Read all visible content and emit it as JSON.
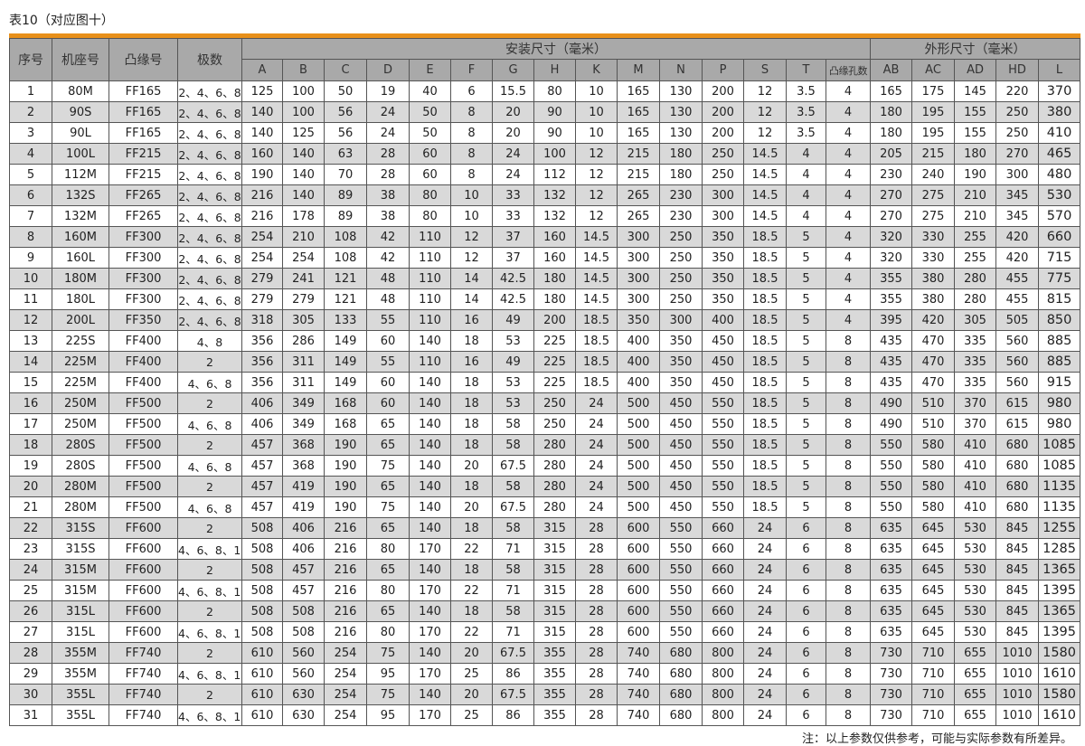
{
  "caption": "表10（对应图十）",
  "note": "注：以上参数仅供参考，可能与实际参数有所差异。",
  "colors": {
    "accent_bar": "#e8901a",
    "header_bg": "#a9a9a9",
    "alt_row_bg": "#d9d9d9"
  },
  "headers": {
    "fixed": [
      "序号",
      "机座号",
      "凸缘号",
      "极数"
    ],
    "group_install": "安装尺寸（毫米）",
    "group_outline": "外形尺寸（毫米）",
    "install_cols": [
      "A",
      "B",
      "C",
      "D",
      "E",
      "F",
      "G",
      "H",
      "K",
      "M",
      "N",
      "P",
      "S",
      "T",
      "凸缘孔数"
    ],
    "outline_cols": [
      "AB",
      "AC",
      "AD",
      "HD",
      "L"
    ]
  },
  "rows": [
    [
      "1",
      "80M",
      "FF165",
      "2、4、6、8",
      "125",
      "100",
      "50",
      "19",
      "40",
      "6",
      "15.5",
      "80",
      "10",
      "165",
      "130",
      "200",
      "12",
      "3.5",
      "4",
      "165",
      "175",
      "145",
      "220",
      "370"
    ],
    [
      "2",
      "90S",
      "FF165",
      "2、4、6、8",
      "140",
      "100",
      "56",
      "24",
      "50",
      "8",
      "20",
      "90",
      "10",
      "165",
      "130",
      "200",
      "12",
      "3.5",
      "4",
      "180",
      "195",
      "155",
      "250",
      "380"
    ],
    [
      "3",
      "90L",
      "FF165",
      "2、4、6、8",
      "140",
      "125",
      "56",
      "24",
      "50",
      "8",
      "20",
      "90",
      "10",
      "165",
      "130",
      "200",
      "12",
      "3.5",
      "4",
      "180",
      "195",
      "155",
      "250",
      "410"
    ],
    [
      "4",
      "100L",
      "FF215",
      "2、4、6、8",
      "160",
      "140",
      "63",
      "28",
      "60",
      "8",
      "24",
      "100",
      "12",
      "215",
      "180",
      "250",
      "14.5",
      "4",
      "4",
      "205",
      "215",
      "180",
      "270",
      "465"
    ],
    [
      "5",
      "112M",
      "FF215",
      "2、4、6、8",
      "190",
      "140",
      "70",
      "28",
      "60",
      "8",
      "24",
      "112",
      "12",
      "215",
      "180",
      "250",
      "14.5",
      "4",
      "4",
      "230",
      "240",
      "190",
      "300",
      "480"
    ],
    [
      "6",
      "132S",
      "FF265",
      "2、4、6、8",
      "216",
      "140",
      "89",
      "38",
      "80",
      "10",
      "33",
      "132",
      "12",
      "265",
      "230",
      "300",
      "14.5",
      "4",
      "4",
      "270",
      "275",
      "210",
      "345",
      "530"
    ],
    [
      "7",
      "132M",
      "FF265",
      "2、4、6、8",
      "216",
      "178",
      "89",
      "38",
      "80",
      "10",
      "33",
      "132",
      "12",
      "265",
      "230",
      "300",
      "14.5",
      "4",
      "4",
      "270",
      "275",
      "210",
      "345",
      "570"
    ],
    [
      "8",
      "160M",
      "FF300",
      "2、4、6、8",
      "254",
      "210",
      "108",
      "42",
      "110",
      "12",
      "37",
      "160",
      "14.5",
      "300",
      "250",
      "350",
      "18.5",
      "5",
      "4",
      "320",
      "330",
      "255",
      "420",
      "660"
    ],
    [
      "9",
      "160L",
      "FF300",
      "2、4、6、8",
      "254",
      "254",
      "108",
      "42",
      "110",
      "12",
      "37",
      "160",
      "14.5",
      "300",
      "250",
      "350",
      "18.5",
      "5",
      "4",
      "320",
      "330",
      "255",
      "420",
      "715"
    ],
    [
      "10",
      "180M",
      "FF300",
      "2、4、6、8",
      "279",
      "241",
      "121",
      "48",
      "110",
      "14",
      "42.5",
      "180",
      "14.5",
      "300",
      "250",
      "350",
      "18.5",
      "5",
      "4",
      "355",
      "380",
      "280",
      "455",
      "775"
    ],
    [
      "11",
      "180L",
      "FF300",
      "2、4、6、8",
      "279",
      "279",
      "121",
      "48",
      "110",
      "14",
      "42.5",
      "180",
      "14.5",
      "300",
      "250",
      "350",
      "18.5",
      "5",
      "4",
      "355",
      "380",
      "280",
      "455",
      "815"
    ],
    [
      "12",
      "200L",
      "FF350",
      "2、4、6、8",
      "318",
      "305",
      "133",
      "55",
      "110",
      "16",
      "49",
      "200",
      "18.5",
      "350",
      "300",
      "400",
      "18.5",
      "5",
      "4",
      "395",
      "420",
      "305",
      "505",
      "850"
    ],
    [
      "13",
      "225S",
      "FF400",
      "4、8",
      "356",
      "286",
      "149",
      "60",
      "140",
      "18",
      "53",
      "225",
      "18.5",
      "400",
      "350",
      "450",
      "18.5",
      "5",
      "8",
      "435",
      "470",
      "335",
      "560",
      "885"
    ],
    [
      "14",
      "225M",
      "FF400",
      "2",
      "356",
      "311",
      "149",
      "55",
      "110",
      "16",
      "49",
      "225",
      "18.5",
      "400",
      "350",
      "450",
      "18.5",
      "5",
      "8",
      "435",
      "470",
      "335",
      "560",
      "885"
    ],
    [
      "15",
      "225M",
      "FF400",
      "4、6、8",
      "356",
      "311",
      "149",
      "60",
      "140",
      "18",
      "53",
      "225",
      "18.5",
      "400",
      "350",
      "450",
      "18.5",
      "5",
      "8",
      "435",
      "470",
      "335",
      "560",
      "915"
    ],
    [
      "16",
      "250M",
      "FF500",
      "2",
      "406",
      "349",
      "168",
      "60",
      "140",
      "18",
      "53",
      "250",
      "24",
      "500",
      "450",
      "550",
      "18.5",
      "5",
      "8",
      "490",
      "510",
      "370",
      "615",
      "980"
    ],
    [
      "17",
      "250M",
      "FF500",
      "4、6、8",
      "406",
      "349",
      "168",
      "65",
      "140",
      "18",
      "58",
      "250",
      "24",
      "500",
      "450",
      "550",
      "18.5",
      "5",
      "8",
      "490",
      "510",
      "370",
      "615",
      "980"
    ],
    [
      "18",
      "280S",
      "FF500",
      "2",
      "457",
      "368",
      "190",
      "65",
      "140",
      "18",
      "58",
      "280",
      "24",
      "500",
      "450",
      "550",
      "18.5",
      "5",
      "8",
      "550",
      "580",
      "410",
      "680",
      "1085"
    ],
    [
      "19",
      "280S",
      "FF500",
      "4、6、8",
      "457",
      "368",
      "190",
      "75",
      "140",
      "20",
      "67.5",
      "280",
      "24",
      "500",
      "450",
      "550",
      "18.5",
      "5",
      "8",
      "550",
      "580",
      "410",
      "680",
      "1085"
    ],
    [
      "20",
      "280M",
      "FF500",
      "2",
      "457",
      "419",
      "190",
      "65",
      "140",
      "18",
      "58",
      "280",
      "24",
      "500",
      "450",
      "550",
      "18.5",
      "5",
      "8",
      "550",
      "580",
      "410",
      "680",
      "1135"
    ],
    [
      "21",
      "280M",
      "FF500",
      "4、6、8",
      "457",
      "419",
      "190",
      "75",
      "140",
      "20",
      "67.5",
      "280",
      "24",
      "500",
      "450",
      "550",
      "18.5",
      "5",
      "8",
      "550",
      "580",
      "410",
      "680",
      "1135"
    ],
    [
      "22",
      "315S",
      "FF600",
      "2",
      "508",
      "406",
      "216",
      "65",
      "140",
      "18",
      "58",
      "315",
      "28",
      "600",
      "550",
      "660",
      "24",
      "6",
      "8",
      "635",
      "645",
      "530",
      "845",
      "1255"
    ],
    [
      "23",
      "315S",
      "FF600",
      "4、6、8、10",
      "508",
      "406",
      "216",
      "80",
      "170",
      "22",
      "71",
      "315",
      "28",
      "600",
      "550",
      "660",
      "24",
      "6",
      "8",
      "635",
      "645",
      "530",
      "845",
      "1285"
    ],
    [
      "24",
      "315M",
      "FF600",
      "2",
      "508",
      "457",
      "216",
      "65",
      "140",
      "18",
      "58",
      "315",
      "28",
      "600",
      "550",
      "660",
      "24",
      "6",
      "8",
      "635",
      "645",
      "530",
      "845",
      "1365"
    ],
    [
      "25",
      "315M",
      "FF600",
      "4、6、8、10",
      "508",
      "457",
      "216",
      "80",
      "170",
      "22",
      "71",
      "315",
      "28",
      "600",
      "550",
      "660",
      "24",
      "6",
      "8",
      "635",
      "645",
      "530",
      "845",
      "1395"
    ],
    [
      "26",
      "315L",
      "FF600",
      "2",
      "508",
      "508",
      "216",
      "65",
      "140",
      "18",
      "58",
      "315",
      "28",
      "600",
      "550",
      "660",
      "24",
      "6",
      "8",
      "635",
      "645",
      "530",
      "845",
      "1365"
    ],
    [
      "27",
      "315L",
      "FF600",
      "4、6、8、10",
      "508",
      "508",
      "216",
      "80",
      "170",
      "22",
      "71",
      "315",
      "28",
      "600",
      "550",
      "660",
      "24",
      "6",
      "8",
      "635",
      "645",
      "530",
      "845",
      "1395"
    ],
    [
      "28",
      "355M",
      "FF740",
      "2",
      "610",
      "560",
      "254",
      "75",
      "140",
      "20",
      "67.5",
      "355",
      "28",
      "740",
      "680",
      "800",
      "24",
      "6",
      "8",
      "730",
      "710",
      "655",
      "1010",
      "1580"
    ],
    [
      "29",
      "355M",
      "FF740",
      "4、6、8、10",
      "610",
      "560",
      "254",
      "95",
      "170",
      "25",
      "86",
      "355",
      "28",
      "740",
      "680",
      "800",
      "24",
      "6",
      "8",
      "730",
      "710",
      "655",
      "1010",
      "1610"
    ],
    [
      "30",
      "355L",
      "FF740",
      "2",
      "610",
      "630",
      "254",
      "75",
      "140",
      "20",
      "67.5",
      "355",
      "28",
      "740",
      "680",
      "800",
      "24",
      "6",
      "8",
      "730",
      "710",
      "655",
      "1010",
      "1580"
    ],
    [
      "31",
      "355L",
      "FF740",
      "4、6、8、10",
      "610",
      "630",
      "254",
      "95",
      "170",
      "25",
      "86",
      "355",
      "28",
      "740",
      "680",
      "800",
      "24",
      "6",
      "8",
      "730",
      "710",
      "655",
      "1010",
      "1610"
    ]
  ]
}
